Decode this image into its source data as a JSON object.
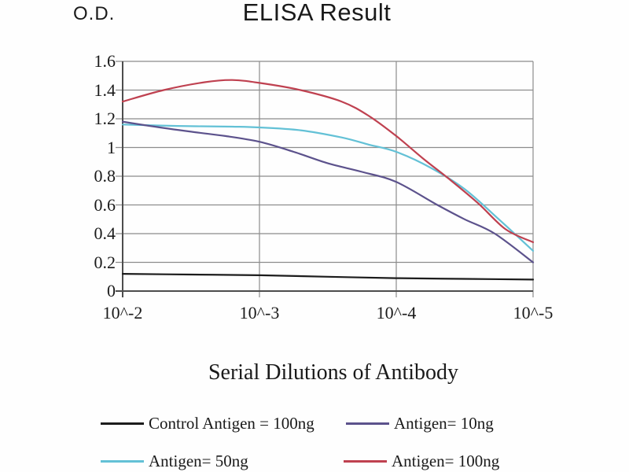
{
  "header": {
    "y_axis_label": "O.D.",
    "title": "ELISA Result"
  },
  "x_axis": {
    "title": "Serial Dilutions of Antibody",
    "tick_labels": [
      "10^-2",
      "10^-3",
      "10^-4",
      "10^-5"
    ]
  },
  "y_axis": {
    "tick_labels_top_to_bottom": [
      "1.6",
      "1.4",
      "1.2",
      "1",
      "0.8",
      "0.6",
      "0.4",
      "0.2",
      "0"
    ],
    "min": 0,
    "max": 1.6
  },
  "legend": [
    {
      "label": "Control Antigen = 100ng",
      "color": "#1c1c1c"
    },
    {
      "label": "Antigen= 10ng",
      "color": "#5c528c"
    },
    {
      "label": "Antigen= 50ng",
      "color": "#63c1d6"
    },
    {
      "label": "Antigen= 100ng",
      "color": "#bf4150"
    }
  ],
  "colors": {
    "gridline": "#8c8c8c",
    "axis": "#4d4d4d",
    "text": "#1a1a1a"
  },
  "chart_data": {
    "type": "line",
    "title": "ELISA Result",
    "xlabel": "Serial Dilutions of Antibody",
    "ylabel": "O.D.",
    "x_categories": [
      "10^-2",
      "10^-3",
      "10^-4",
      "10^-5"
    ],
    "x_decades": [
      2,
      3,
      4,
      5
    ],
    "ylim": [
      0,
      1.6
    ],
    "y_tick_step": 0.2,
    "grid": true,
    "legend_position": "bottom",
    "series": [
      {
        "name": "Control Antigen = 100ng",
        "color": "#1c1c1c",
        "values_at_ticks": [
          0.12,
          0.11,
          0.09,
          0.08
        ],
        "samples": [
          [
            2,
            0.12
          ],
          [
            2.5,
            0.115
          ],
          [
            3,
            0.11
          ],
          [
            3.5,
            0.1
          ],
          [
            4,
            0.09
          ],
          [
            4.5,
            0.085
          ],
          [
            5,
            0.08
          ]
        ]
      },
      {
        "name": "Antigen= 50ng",
        "color": "#63c1d6",
        "values_at_ticks": [
          1.16,
          1.14,
          0.97,
          0.28
        ],
        "samples": [
          [
            2,
            1.16
          ],
          [
            2.4,
            1.15
          ],
          [
            2.8,
            1.145
          ],
          [
            3,
            1.14
          ],
          [
            3.3,
            1.12
          ],
          [
            3.6,
            1.07
          ],
          [
            3.8,
            1.02
          ],
          [
            4,
            0.97
          ],
          [
            4.25,
            0.86
          ],
          [
            4.5,
            0.71
          ],
          [
            4.75,
            0.5
          ],
          [
            5,
            0.28
          ]
        ]
      },
      {
        "name": "Antigen= 10ng",
        "color": "#5c528c",
        "values_at_ticks": [
          1.18,
          1.04,
          0.76,
          0.2
        ],
        "samples": [
          [
            2,
            1.18
          ],
          [
            2.2,
            1.15
          ],
          [
            2.5,
            1.11
          ],
          [
            2.75,
            1.08
          ],
          [
            3,
            1.04
          ],
          [
            3.25,
            0.97
          ],
          [
            3.5,
            0.89
          ],
          [
            3.75,
            0.83
          ],
          [
            4,
            0.76
          ],
          [
            4.3,
            0.6
          ],
          [
            4.5,
            0.5
          ],
          [
            4.72,
            0.4
          ],
          [
            5,
            0.2
          ]
        ]
      },
      {
        "name": "Antigen= 100ng",
        "color": "#bf4150",
        "values_at_ticks": [
          1.32,
          1.45,
          1.08,
          0.34
        ],
        "samples": [
          [
            2,
            1.32
          ],
          [
            2.3,
            1.4
          ],
          [
            2.6,
            1.455
          ],
          [
            2.8,
            1.47
          ],
          [
            3,
            1.45
          ],
          [
            3.3,
            1.4
          ],
          [
            3.6,
            1.32
          ],
          [
            3.8,
            1.22
          ],
          [
            4,
            1.08
          ],
          [
            4.2,
            0.92
          ],
          [
            4.4,
            0.77
          ],
          [
            4.6,
            0.61
          ],
          [
            4.8,
            0.43
          ],
          [
            5,
            0.34
          ]
        ]
      }
    ]
  }
}
